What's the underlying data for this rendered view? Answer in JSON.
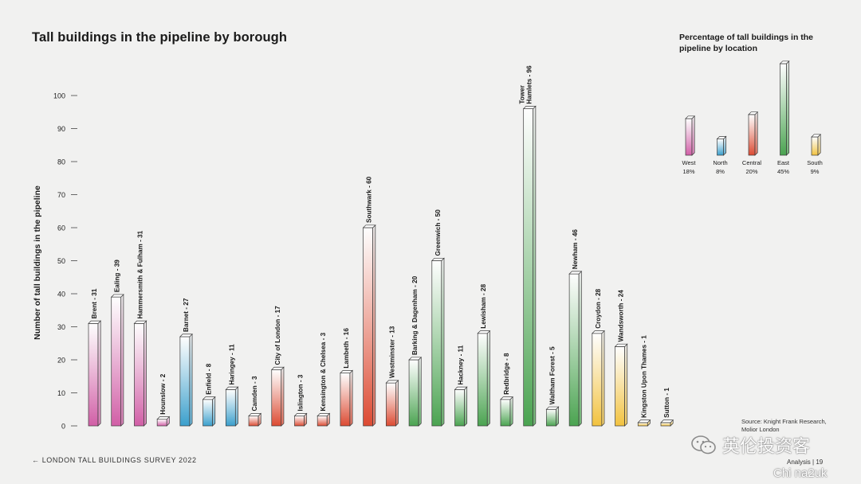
{
  "page": {
    "title": "Tall buildings in the pipeline by borough",
    "footer_survey": "← LONDON TALL BUILDINGS SURVEY 2022",
    "footer_page": "Analysis | 19",
    "source": "Source: Knight Frank Research, Molior London",
    "watermark_text": "英伦投资客",
    "watermark_url": "Chi na2uk"
  },
  "colors": {
    "West": "#d15ea6",
    "North": "#3a9fcc",
    "Central": "#dc4a32",
    "East": "#4aa350",
    "South": "#f2c23e"
  },
  "chart_data": [
    {
      "type": "bar",
      "title": "Tall buildings in the pipeline by borough",
      "xlabel": "",
      "ylabel": "Number of tall buildings in the pipeline",
      "ylim": [
        0,
        100
      ],
      "yticks": [
        0,
        10,
        20,
        30,
        40,
        50,
        60,
        70,
        80,
        90,
        100
      ],
      "grid": false,
      "bars": [
        {
          "label": "Brent - 31",
          "value": 31,
          "group": "West"
        },
        {
          "label": "Ealing - 39",
          "value": 39,
          "group": "West"
        },
        {
          "label": "Hammersmith & Fulham - 31",
          "value": 31,
          "group": "West"
        },
        {
          "label": "Hounslow - 2",
          "value": 2,
          "group": "West"
        },
        {
          "label": "Barnet - 27",
          "value": 27,
          "group": "North"
        },
        {
          "label": "Enfield - 8",
          "value": 8,
          "group": "North"
        },
        {
          "label": "Haringey - 11",
          "value": 11,
          "group": "North"
        },
        {
          "label": "Camden - 3",
          "value": 3,
          "group": "Central"
        },
        {
          "label": "City of London - 17",
          "value": 17,
          "group": "Central"
        },
        {
          "label": "Islington - 3",
          "value": 3,
          "group": "Central"
        },
        {
          "label": "Kensington & Chelsea - 3",
          "value": 3,
          "group": "Central"
        },
        {
          "label": "Lambeth - 16",
          "value": 16,
          "group": "Central"
        },
        {
          "label": "Southwark - 60",
          "value": 60,
          "group": "Central"
        },
        {
          "label": "Westminster - 13",
          "value": 13,
          "group": "Central"
        },
        {
          "label": "Barking & Dagenham - 20",
          "value": 20,
          "group": "East"
        },
        {
          "label": "Greenwich - 50",
          "value": 50,
          "group": "East"
        },
        {
          "label": "Hackney - 11",
          "value": 11,
          "group": "East"
        },
        {
          "label": "Lewisham - 28",
          "value": 28,
          "group": "East"
        },
        {
          "label": "Redbridge - 8",
          "value": 8,
          "group": "East"
        },
        {
          "label": "Tower Hamlets - 96",
          "value": 96,
          "group": "East",
          "label_lines": [
            "Tower",
            "Hamlets - 96"
          ]
        },
        {
          "label": "Waltham Forest - 5",
          "value": 5,
          "group": "East"
        },
        {
          "label": "Newham - 46",
          "value": 46,
          "group": "East"
        },
        {
          "label": "Croydon - 28",
          "value": 28,
          "group": "South"
        },
        {
          "label": "Wandsworth - 24",
          "value": 24,
          "group": "South"
        },
        {
          "label": "Kingston Upon Thames - 1",
          "value": 1,
          "group": "South"
        },
        {
          "label": "Sutton - 1",
          "value": 1,
          "group": "South"
        }
      ]
    },
    {
      "type": "bar",
      "title": "Percentage of tall buildings in the pipeline by location",
      "categories": [
        "West",
        "North",
        "Central",
        "East",
        "South"
      ],
      "values": [
        18,
        8,
        20,
        45,
        9
      ],
      "value_labels": [
        "18%",
        "8%",
        "20%",
        "45%",
        "9%"
      ],
      "grid": false
    }
  ]
}
